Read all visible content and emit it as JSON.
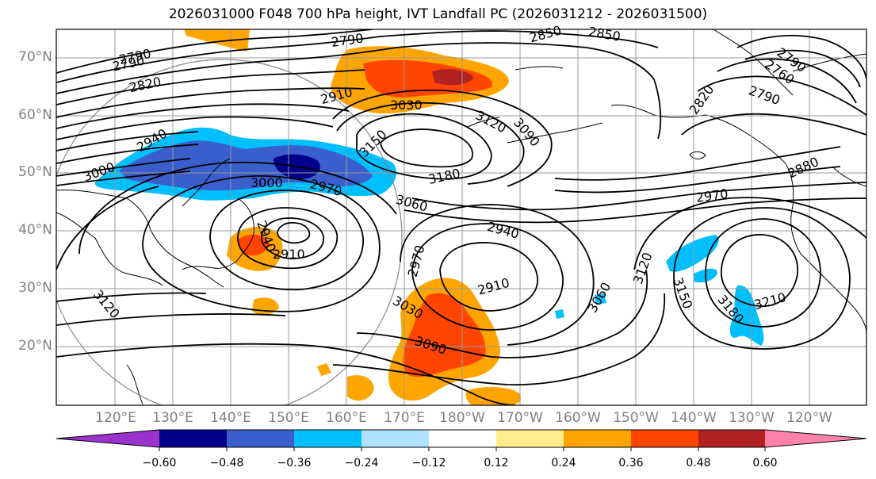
{
  "title": "2026031000 F048 700 hPa height, IVT Landfall PC (2026031212 - 2026031500)",
  "lat_labels": [
    "70°N",
    "60°N",
    "50°N",
    "40°N",
    "30°N",
    "20°N"
  ],
  "lon_labels": [
    "120°E",
    "130°E",
    "140°E",
    "150°E",
    "160°E",
    "170°E",
    "180°W",
    "170°W",
    "160°W",
    "150°W",
    "140°W",
    "130°W",
    "120°W"
  ],
  "contour_labels": [
    "2790",
    "2790",
    "2820",
    "2790",
    "2850",
    "2850",
    "2910",
    "3030",
    "2940",
    "3000",
    "3150",
    "3120",
    "3090",
    "3180",
    "3000",
    "2970",
    "3060",
    "2820",
    "2790",
    "2760",
    "2790",
    "2880",
    "2970",
    "2940",
    "2940",
    "2910",
    "2970",
    "3030",
    "3090",
    "2910",
    "3060",
    "3120",
    "3150",
    "3180",
    "3210",
    "3120"
  ],
  "colorbar": {
    "colors": [
      "#9a32cd",
      "#00008b",
      "#3a5fcd",
      "#00bfff",
      "#b0e2ff",
      "#ffffff",
      "#ffec8b",
      "#ffa500",
      "#ff4500",
      "#b22222",
      "#ff82ab"
    ],
    "ticks": [
      "−0.60",
      "−0.48",
      "−0.36",
      "−0.24",
      "−0.12",
      "0.12",
      "0.24",
      "0.36",
      "0.48",
      "0.60"
    ]
  }
}
